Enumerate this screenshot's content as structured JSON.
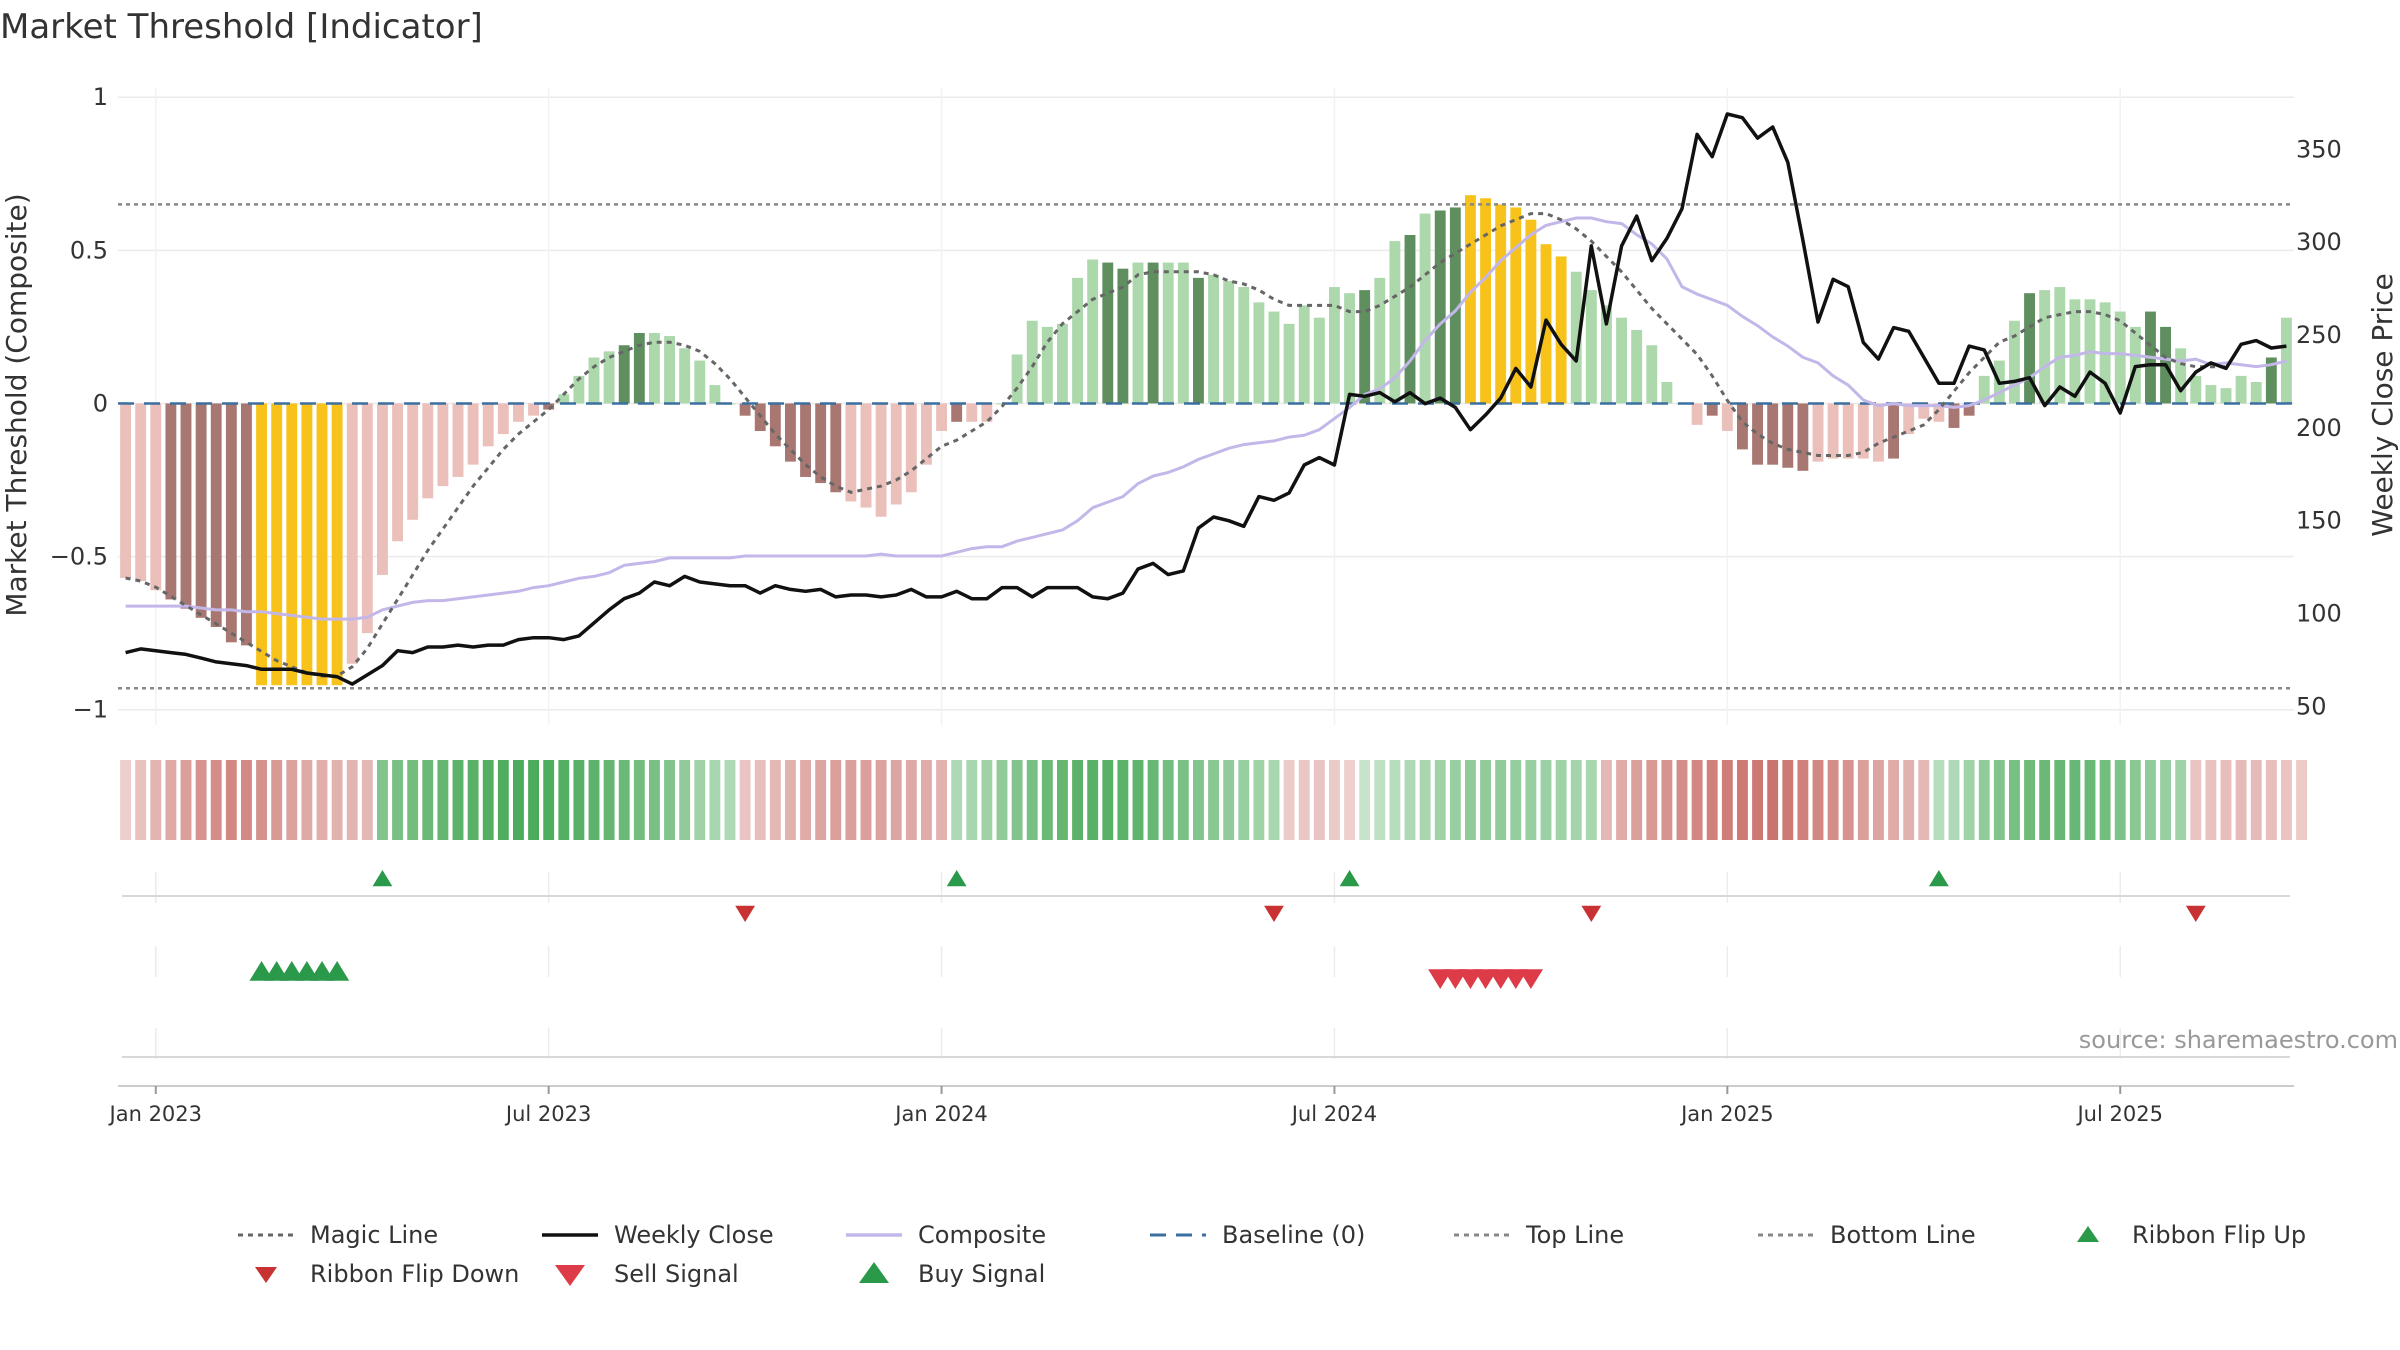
{
  "chart_data": {
    "type": "bar",
    "title": "Market Threshold [Indicator]",
    "ylabel_left": "Market Threshold (Composite)",
    "ylabel_right": "Weekly Close Price",
    "ylim_left": [
      -1.05,
      1.03
    ],
    "ylim_right": [
      40,
      383
    ],
    "yticks_left": [
      {
        "value": 1,
        "label": "1"
      },
      {
        "value": 0.5,
        "label": "0.5"
      },
      {
        "value": 0,
        "label": "0"
      },
      {
        "value": -0.5,
        "label": "−0.5"
      },
      {
        "value": -1,
        "label": "−1"
      }
    ],
    "yticks_right": [
      {
        "value": 350,
        "label": "350"
      },
      {
        "value": 300,
        "label": "300"
      },
      {
        "value": 250,
        "label": "250"
      },
      {
        "value": 200,
        "label": "200"
      },
      {
        "value": 150,
        "label": "150"
      },
      {
        "value": 100,
        "label": "100"
      },
      {
        "value": 50,
        "label": "50"
      }
    ],
    "xticks": [
      {
        "week": 2,
        "label": "Jan 2023"
      },
      {
        "week": 28,
        "label": "Jul 2023"
      },
      {
        "week": 54,
        "label": "Jan 2024"
      },
      {
        "week": 80,
        "label": "Jul 2024"
      },
      {
        "week": 106,
        "label": "Jan 2025"
      },
      {
        "week": 132,
        "label": "Jul 2025"
      }
    ],
    "top_line": 0.65,
    "bottom_line": -0.93,
    "baseline": 0,
    "weeks": 144,
    "composite_bars": [
      -0.57,
      -0.58,
      -0.61,
      -0.64,
      -0.67,
      -0.7,
      -0.73,
      -0.78,
      -0.79,
      -0.92,
      -0.92,
      -0.92,
      -0.92,
      -0.92,
      -0.92,
      -0.85,
      -0.75,
      -0.56,
      -0.45,
      -0.38,
      -0.31,
      -0.27,
      -0.24,
      -0.2,
      -0.14,
      -0.1,
      -0.06,
      -0.04,
      -0.02,
      0.03,
      0.09,
      0.15,
      0.17,
      0.19,
      0.23,
      0.23,
      0.22,
      0.18,
      0.14,
      0.06,
      0.0,
      -0.04,
      -0.09,
      -0.14,
      -0.19,
      -0.24,
      -0.26,
      -0.29,
      -0.32,
      -0.34,
      -0.37,
      -0.33,
      -0.29,
      -0.2,
      -0.09,
      -0.06,
      -0.06,
      -0.06,
      0.0,
      0.16,
      0.27,
      0.25,
      0.26,
      0.41,
      0.47,
      0.46,
      0.44,
      0.46,
      0.46,
      0.46,
      0.46,
      0.41,
      0.42,
      0.4,
      0.38,
      0.33,
      0.3,
      0.26,
      0.32,
      0.28,
      0.38,
      0.36,
      0.37,
      0.41,
      0.53,
      0.55,
      0.62,
      0.63,
      0.64,
      0.68,
      0.67,
      0.65,
      0.64,
      0.6,
      0.52,
      0.48,
      0.43,
      0.37,
      0.32,
      0.28,
      0.24,
      0.19,
      0.07,
      0.0,
      -0.07,
      -0.04,
      -0.09,
      -0.15,
      -0.2,
      -0.2,
      -0.21,
      -0.22,
      -0.19,
      -0.18,
      -0.18,
      -0.18,
      -0.19,
      -0.18,
      -0.1,
      -0.05,
      -0.06,
      -0.08,
      -0.04,
      0.09,
      0.14,
      0.27,
      0.36,
      0.37,
      0.38,
      0.34,
      0.34,
      0.33,
      0.3,
      0.25,
      0.3,
      0.25,
      0.18,
      0.09,
      0.06,
      0.05,
      0.09,
      0.07,
      0.15,
      0.28
    ],
    "bar_state": "fffccccccyyyyyyfffffffffffffcccccggffffffcccccccfffffffcfffffccccggcgccgfffffffffcgfcgcggyyyyyyyfffffffffcfcccccfffffcfggccccfgfffffffggfffcfcg",
    "weekly_close": [
      79,
      81,
      80,
      79,
      78,
      76,
      74,
      73,
      72,
      70,
      70,
      70,
      68,
      67,
      66,
      62,
      67,
      72,
      80,
      79,
      82,
      82,
      83,
      82,
      83,
      83,
      86,
      87,
      87,
      86,
      88,
      95,
      102,
      108,
      111,
      117,
      115,
      120,
      117,
      116,
      115,
      115,
      111,
      115,
      113,
      112,
      113,
      109,
      110,
      110,
      109,
      110,
      113,
      109,
      109,
      112,
      108,
      108,
      114,
      114,
      109,
      114,
      114,
      114,
      109,
      108,
      111,
      124,
      127,
      121,
      123,
      146,
      152,
      150,
      147,
      163,
      161,
      165,
      180,
      184,
      180,
      218,
      217,
      219,
      214,
      219,
      213,
      216,
      211,
      199,
      207,
      216,
      232,
      222,
      258,
      245,
      236,
      298,
      256,
      298,
      314,
      290,
      302,
      318,
      358,
      346,
      369,
      367,
      356,
      362,
      343,
      301,
      257,
      280,
      276,
      246,
      237,
      254,
      252,
      238,
      224,
      224,
      244,
      242,
      224,
      225,
      227,
      212,
      222,
      217,
      230,
      224,
      208,
      233,
      234,
      234,
      220,
      230,
      235,
      232,
      245,
      247,
      243,
      244
    ],
    "composite_line": [
      104,
      104,
      104,
      104,
      104,
      103,
      102,
      102,
      101,
      101,
      100,
      99,
      98,
      97,
      97,
      97,
      98,
      102,
      104,
      106,
      107,
      107,
      108,
      109,
      110,
      111,
      112,
      114,
      115,
      117,
      119,
      120,
      122,
      126,
      127,
      128,
      130,
      130,
      130,
      130,
      130,
      131,
      131,
      131,
      131,
      131,
      131,
      131,
      131,
      131,
      132,
      131,
      131,
      131,
      131,
      133,
      135,
      136,
      136,
      139,
      141,
      143,
      145,
      150,
      157,
      160,
      163,
      170,
      174,
      176,
      179,
      183,
      186,
      189,
      191,
      192,
      193,
      195,
      196,
      199,
      205,
      211,
      218,
      221,
      227,
      236,
      247,
      256,
      263,
      273,
      281,
      290,
      297,
      304,
      309,
      311,
      313,
      313,
      311,
      310,
      304,
      299,
      291,
      276,
      272,
      269,
      266,
      260,
      255,
      249,
      244,
      238,
      235,
      228,
      223,
      215,
      212,
      213,
      212,
      212,
      212,
      211,
      212,
      215,
      219,
      223,
      227,
      233,
      238,
      239,
      241,
      240,
      240,
      239,
      238,
      237,
      236,
      237,
      234,
      235,
      234,
      233,
      234,
      236
    ],
    "magic_line": [
      -0.57,
      -0.58,
      -0.6,
      -0.63,
      -0.66,
      -0.69,
      -0.72,
      -0.75,
      -0.78,
      -0.81,
      -0.84,
      -0.86,
      -0.88,
      -0.89,
      -0.89,
      -0.86,
      -0.8,
      -0.72,
      -0.64,
      -0.56,
      -0.48,
      -0.41,
      -0.34,
      -0.27,
      -0.21,
      -0.15,
      -0.1,
      -0.06,
      -0.02,
      0.03,
      0.08,
      0.12,
      0.15,
      0.17,
      0.19,
      0.2,
      0.2,
      0.19,
      0.17,
      0.13,
      0.08,
      0.02,
      -0.04,
      -0.1,
      -0.15,
      -0.2,
      -0.24,
      -0.27,
      -0.29,
      -0.28,
      -0.27,
      -0.25,
      -0.22,
      -0.18,
      -0.14,
      -0.12,
      -0.09,
      -0.06,
      -0.01,
      0.05,
      0.12,
      0.2,
      0.26,
      0.3,
      0.34,
      0.36,
      0.38,
      0.42,
      0.43,
      0.43,
      0.43,
      0.43,
      0.42,
      0.4,
      0.39,
      0.37,
      0.34,
      0.32,
      0.32,
      0.32,
      0.32,
      0.3,
      0.3,
      0.32,
      0.35,
      0.38,
      0.42,
      0.46,
      0.49,
      0.52,
      0.55,
      0.58,
      0.6,
      0.62,
      0.62,
      0.6,
      0.57,
      0.53,
      0.48,
      0.43,
      0.37,
      0.31,
      0.26,
      0.21,
      0.16,
      0.09,
      0.01,
      -0.06,
      -0.1,
      -0.13,
      -0.15,
      -0.16,
      -0.17,
      -0.17,
      -0.17,
      -0.16,
      -0.13,
      -0.11,
      -0.09,
      -0.07,
      -0.02,
      0.04,
      0.1,
      0.15,
      0.2,
      0.22,
      0.25,
      0.28,
      0.29,
      0.3,
      0.3,
      0.29,
      0.27,
      0.23,
      0.19,
      0.15,
      0.13,
      0.12,
      0.12,
      0.12
    ]
  },
  "ribbon": {
    "values": [
      -0.12,
      -0.22,
      -0.32,
      -0.42,
      -0.5,
      -0.6,
      -0.65,
      -0.7,
      -0.68,
      -0.62,
      -0.55,
      -0.48,
      -0.42,
      -0.38,
      -0.35,
      -0.32,
      -0.3,
      0.55,
      0.6,
      0.65,
      0.7,
      0.75,
      0.8,
      0.82,
      0.85,
      0.88,
      0.9,
      0.9,
      0.88,
      0.85,
      0.82,
      0.8,
      0.75,
      0.7,
      0.65,
      0.6,
      0.55,
      0.45,
      0.35,
      0.3,
      0.25,
      -0.2,
      -0.25,
      -0.3,
      -0.35,
      -0.4,
      -0.45,
      -0.5,
      -0.5,
      -0.5,
      -0.48,
      -0.45,
      -0.42,
      -0.4,
      -0.35,
      0.25,
      0.3,
      0.35,
      0.45,
      0.55,
      0.62,
      0.7,
      0.75,
      0.8,
      0.82,
      0.82,
      0.8,
      0.78,
      0.72,
      0.65,
      0.6,
      0.55,
      0.5,
      0.45,
      0.4,
      0.35,
      0.3,
      -0.15,
      -0.18,
      -0.2,
      -0.15,
      -0.1,
      0.1,
      0.15,
      0.2,
      0.25,
      0.3,
      0.35,
      0.4,
      0.45,
      0.45,
      0.45,
      0.42,
      0.4,
      0.38,
      0.35,
      0.33,
      0.3,
      -0.3,
      -0.4,
      -0.5,
      -0.55,
      -0.6,
      -0.65,
      -0.7,
      -0.75,
      -0.78,
      -0.8,
      -0.82,
      -0.85,
      -0.8,
      -0.75,
      -0.7,
      -0.65,
      -0.6,
      -0.5,
      -0.45,
      -0.4,
      -0.35,
      -0.3,
      0.2,
      0.25,
      0.35,
      0.45,
      0.55,
      0.62,
      0.68,
      0.7,
      0.72,
      0.72,
      0.7,
      0.65,
      0.58,
      0.5,
      0.45,
      0.4,
      0.35,
      -0.2,
      -0.22,
      -0.25,
      -0.28,
      -0.28,
      -0.25,
      -0.2,
      -0.15
    ]
  },
  "signals": {
    "ribbon_flip_up": [
      17,
      55,
      81,
      120
    ],
    "ribbon_flip_down": [
      41,
      76,
      97,
      137
    ],
    "buy_signal": [
      9,
      10,
      11,
      12,
      13,
      14
    ],
    "sell_signal": [
      87,
      88,
      89,
      90,
      91,
      92,
      93
    ]
  },
  "colors": {
    "bar_dark_green": "#5f8f5f",
    "bar_light_green": "#acd8ac",
    "bar_dark_red": "#a87772",
    "bar_light_red": "#ebc0bb",
    "bar_yellow": "#f7c31a",
    "weekly_close": "#111111",
    "composite": "#c3b7ea",
    "magic": "#666666",
    "baseline": "#3a6f9f",
    "threshold": "#888888",
    "up_marker": "#2a9a4a",
    "down_marker": "#c83232",
    "sell_marker": "#dd3b48"
  },
  "legend": [
    {
      "label": "Magic Line",
      "style": "dot",
      "color": "#666666"
    },
    {
      "label": "Weekly Close",
      "style": "solid",
      "color": "#111111"
    },
    {
      "label": "Composite",
      "style": "solid",
      "color": "#c3b7ea"
    },
    {
      "label": "Baseline (0)",
      "style": "dash",
      "color": "#3a6f9f"
    },
    {
      "label": "Top Line",
      "style": "dot",
      "color": "#888888"
    },
    {
      "label": "Bottom Line",
      "style": "dot",
      "color": "#888888"
    },
    {
      "label": "Ribbon Flip Up",
      "style": "tri-up",
      "color": "#2a9a4a"
    },
    {
      "label": "Ribbon Flip Down",
      "style": "tri-down",
      "color": "#c83232"
    },
    {
      "label": "Sell Signal",
      "style": "tri-down-big",
      "color": "#dd3b48"
    },
    {
      "label": "Buy Signal",
      "style": "tri-up-big",
      "color": "#2a9a4a"
    }
  ],
  "source": "source: sharemaestro.com"
}
